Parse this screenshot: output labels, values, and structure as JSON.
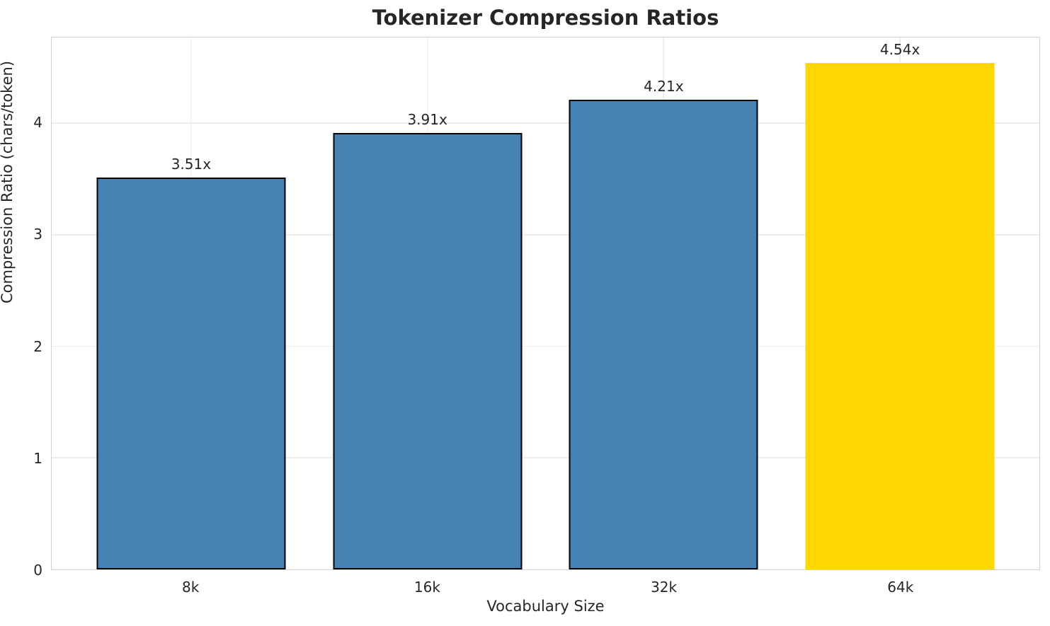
{
  "chart_data": {
    "type": "bar",
    "title": "Tokenizer Compression Ratios",
    "xlabel": "Vocabulary Size",
    "ylabel": "Compression Ratio (chars/token)",
    "categories": [
      "8k",
      "16k",
      "32k",
      "64k"
    ],
    "values": [
      3.51,
      3.91,
      4.21,
      4.54
    ],
    "bar_labels": [
      "3.51x",
      "3.91x",
      "4.21x",
      "4.54x"
    ],
    "bar_colors": [
      "#4682b4",
      "#4682b4",
      "#4682b4",
      "#ffd700"
    ],
    "bar_edge_colors": [
      "#000000",
      "#000000",
      "#000000",
      "none"
    ],
    "bar_color_default": "#4682b4",
    "highlight_color": "#ffd700",
    "ylim": [
      0,
      4.767
    ],
    "yticks": [
      0,
      1,
      2,
      3,
      4
    ],
    "grid": true,
    "legend": "none",
    "background_color": "#ffffff",
    "spine_color": "#d2d2d2",
    "grid_color": "#ededed",
    "text_color": "#262626"
  }
}
